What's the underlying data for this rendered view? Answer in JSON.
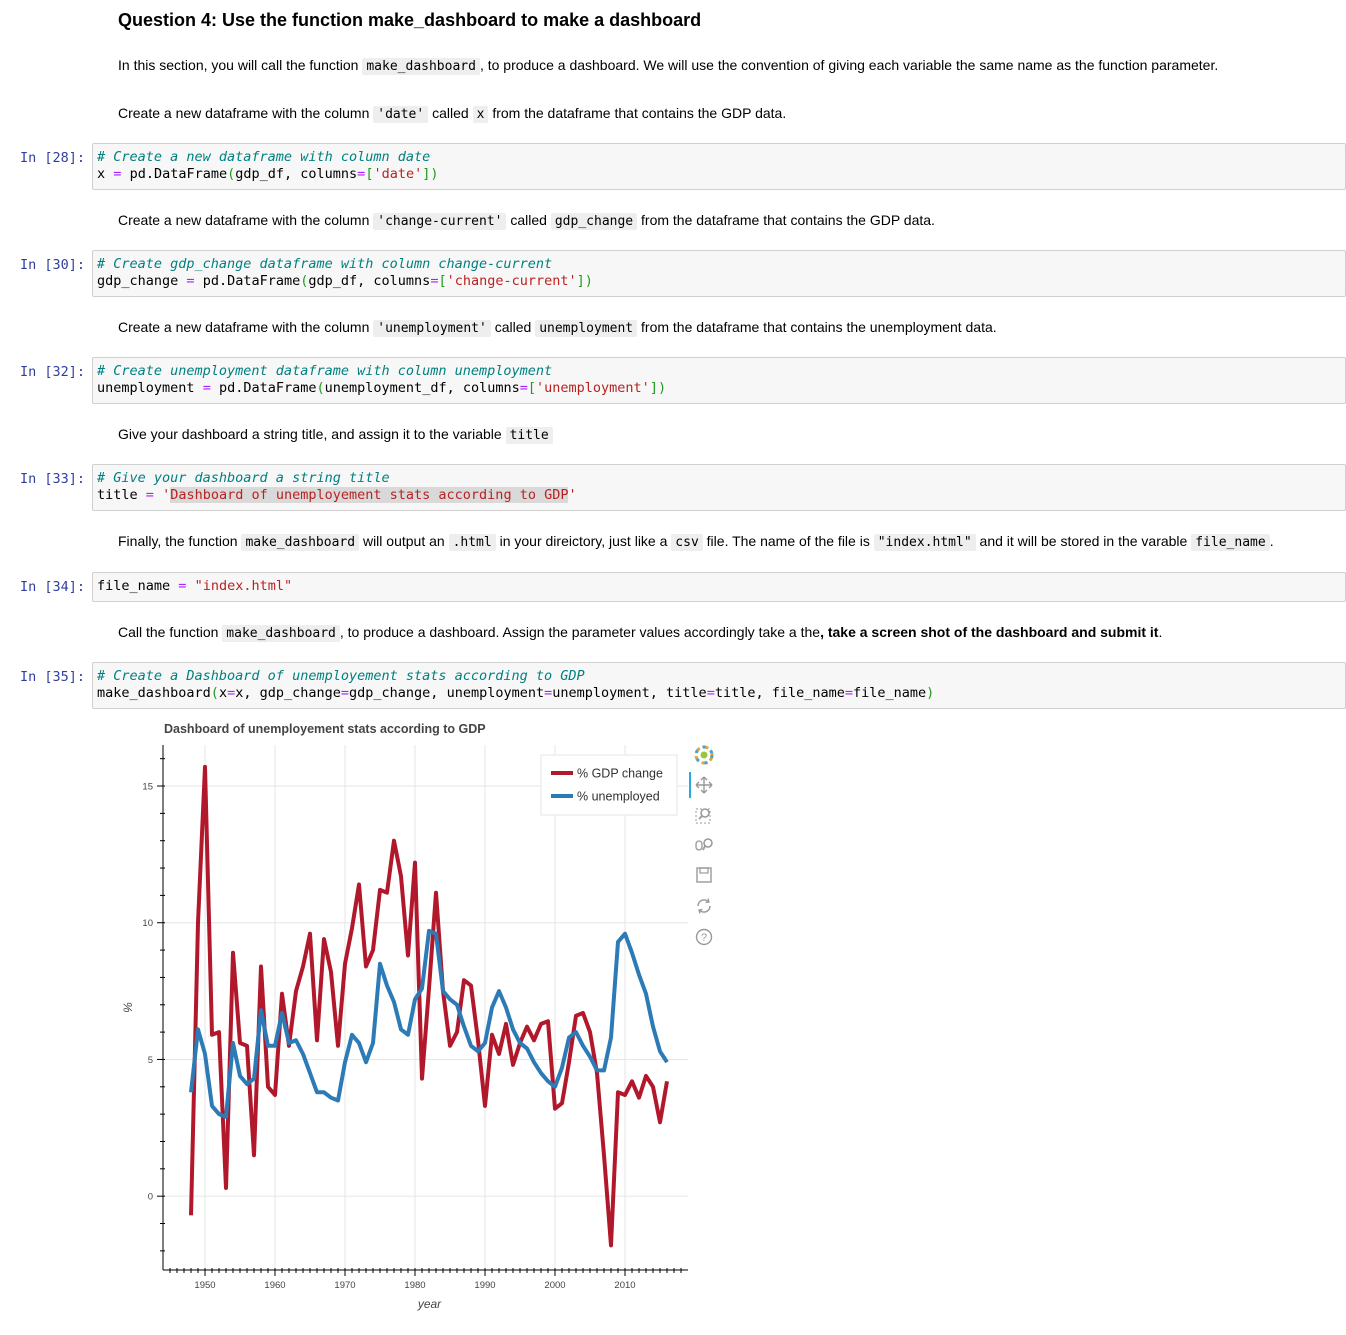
{
  "heading": "Question 4: Use the function make_dashboard to make a dashboard",
  "intro": {
    "p1": "In this section, you will call the function",
    "c1": "make_dashboard",
    "p2": ", to produce a dashboard. We will use the convention of giving each variable the same name as the function parameter."
  },
  "md_date": {
    "p1": "Create a new dataframe with the column",
    "c1": "'date'",
    "p2": "called",
    "c2": "x",
    "p3": "from the dataframe that contains the GDP data."
  },
  "md_gdp": {
    "p1": "Create a new dataframe with the column",
    "c1": "'change-current'",
    "p2": "called",
    "c2": "gdp_change",
    "p3": "from the dataframe that contains the GDP data."
  },
  "md_unemp": {
    "p1": "Create a new dataframe with the column",
    "c1": "'unemployment'",
    "p2": "called",
    "c2": "unemployment",
    "p3": "from the dataframe that contains the unemployment data."
  },
  "md_title": {
    "p1": "Give your dashboard a string title, and assign it to the variable",
    "c1": "title"
  },
  "md_file": {
    "p1": "Finally, the function",
    "c1": "make_dashboard",
    "p2": "will output an",
    "c2": ".html",
    "p3": "in your direictory, just like a",
    "c3": "csv",
    "p4": "file. The name of the file is",
    "c4": "\"index.html\"",
    "p5": "and it will be stored in the varable",
    "c5": "file_name",
    "p6": "."
  },
  "md_call": {
    "p1": "Call the function",
    "c1": "make_dashboard",
    "p2": ", to produce a dashboard. Assign the parameter values accordingly take a the",
    "b1": ", take a screen shot of the dashboard and submit it",
    "p3": "."
  },
  "cells": [
    {
      "prompt": "In [28]:",
      "comment": "# Create a new dataframe with column date",
      "l2": {
        "a": "x",
        "eq": "=",
        "b": "pd.DataFrame",
        "po": "(",
        "c": "gdp_df, columns",
        "eq2": "=",
        "bo": "[",
        "s": "'date'",
        "bc": "]",
        "pc": ")"
      }
    },
    {
      "prompt": "In [30]:",
      "comment": "# Create gdp_change dataframe with column change-current",
      "l2": {
        "a": "gdp_change",
        "eq": "=",
        "b": "pd.DataFrame",
        "po": "(",
        "c": "gdp_df, columns",
        "eq2": "=",
        "bo": "[",
        "s": "'change-current'",
        "bc": "]",
        "pc": ")"
      }
    },
    {
      "prompt": "In [32]:",
      "comment": "# Create unemployment dataframe with column unemployment",
      "l2": {
        "a": "unemployment",
        "eq": "=",
        "b": "pd.DataFrame",
        "po": "(",
        "c": "unemployment_df, columns",
        "eq2": "=",
        "bo": "[",
        "s": "'unemployment'",
        "bc": "]",
        "pc": ")"
      }
    },
    {
      "prompt": "In [33]:",
      "comment": "# Give your dashboard a string title",
      "l2": {
        "a": "title",
        "eq": "=",
        "q1": "'",
        "s": "Dashboard of unemployement stats according to GDP",
        "q2": "'"
      }
    },
    {
      "prompt": "In [34]:",
      "l1": {
        "a": "file_name",
        "eq": "=",
        "s": "\"index.html\""
      }
    },
    {
      "prompt": "In [35]:",
      "comment": "# Create a Dashboard of unemployement stats according to GDP",
      "l2": {
        "a": "make_dashboard",
        "po": "(",
        "k1": "x",
        "e1": "=",
        "v1": "x, gdp_change",
        "e2": "=",
        "v2": "gdp_change, unemployment",
        "e3": "=",
        "v3": "unemployment, title",
        "e4": "=",
        "v4": "title, file_name",
        "e5": "=",
        "v5": "file_name",
        "pc": ")"
      }
    }
  ],
  "toolbar": {
    "icons": [
      "bokeh-logo-icon",
      "pan-icon",
      "box-zoom-icon",
      "wheel-zoom-icon",
      "save-icon",
      "reset-icon",
      "help-icon"
    ]
  },
  "chart_data": {
    "type": "line",
    "title": "Dashboard of unemployement stats according to GDP",
    "xlabel": "year",
    "ylabel": "%",
    "xlim": [
      1944,
      2019
    ],
    "ylim": [
      -2.7,
      16.5
    ],
    "xticks": [
      1950,
      1960,
      1970,
      1980,
      1990,
      2000,
      2010
    ],
    "yticks": [
      0,
      5,
      10,
      15
    ],
    "grid": true,
    "legend_position": "top-right",
    "x": [
      1948,
      1949,
      1950,
      1951,
      1952,
      1953,
      1954,
      1955,
      1956,
      1957,
      1958,
      1959,
      1960,
      1961,
      1962,
      1963,
      1964,
      1965,
      1966,
      1967,
      1968,
      1969,
      1970,
      1971,
      1972,
      1973,
      1974,
      1975,
      1976,
      1977,
      1978,
      1979,
      1980,
      1981,
      1982,
      1983,
      1984,
      1985,
      1986,
      1987,
      1988,
      1989,
      1990,
      1991,
      1992,
      1993,
      1994,
      1995,
      1996,
      1997,
      1998,
      1999,
      2000,
      2001,
      2002,
      2003,
      2004,
      2005,
      2006,
      2007,
      2008,
      2009,
      2010,
      2011,
      2012,
      2013,
      2014,
      2015,
      2016
    ],
    "series": [
      {
        "name": "% GDP change",
        "color": "#b2182b",
        "values": [
          -0.7,
          10.0,
          15.7,
          5.9,
          6.0,
          0.3,
          8.9,
          5.6,
          5.5,
          1.5,
          8.4,
          4.0,
          3.7,
          7.4,
          5.5,
          7.5,
          8.4,
          9.6,
          5.7,
          9.4,
          8.2,
          5.5,
          8.5,
          9.8,
          11.4,
          8.4,
          9.0,
          11.2,
          11.1,
          13.0,
          11.7,
          8.8,
          12.2,
          4.3,
          7.6,
          11.1,
          7.5,
          5.5,
          6.0,
          7.9,
          7.7,
          5.7,
          3.3,
          5.9,
          5.2,
          6.3,
          4.8,
          5.6,
          6.2,
          5.7,
          6.3,
          6.4,
          3.2,
          3.4,
          4.9,
          6.6,
          6.7,
          6.0,
          4.5,
          1.5,
          -1.8,
          3.8,
          3.7,
          4.2,
          3.6,
          4.4,
          4.0,
          2.7,
          4.2
        ]
      },
      {
        "name": "% unemployed",
        "color": "#2c7bb6",
        "values": [
          3.8,
          6.1,
          5.2,
          3.3,
          3.0,
          2.9,
          5.6,
          4.4,
          4.1,
          4.3,
          6.8,
          5.5,
          5.5,
          6.7,
          5.6,
          5.7,
          5.2,
          4.5,
          3.8,
          3.8,
          3.6,
          3.5,
          4.9,
          5.9,
          5.6,
          4.9,
          5.6,
          8.5,
          7.7,
          7.1,
          6.1,
          5.9,
          7.2,
          7.6,
          9.7,
          9.6,
          7.5,
          7.2,
          7.0,
          6.2,
          5.5,
          5.3,
          5.6,
          6.9,
          7.5,
          6.9,
          6.1,
          5.6,
          5.4,
          4.9,
          4.5,
          4.2,
          4.0,
          4.7,
          5.8,
          6.0,
          5.5,
          5.1,
          4.6,
          4.6,
          5.8,
          9.3,
          9.6,
          8.9,
          8.1,
          7.4,
          6.2,
          5.3,
          4.9
        ]
      }
    ]
  }
}
